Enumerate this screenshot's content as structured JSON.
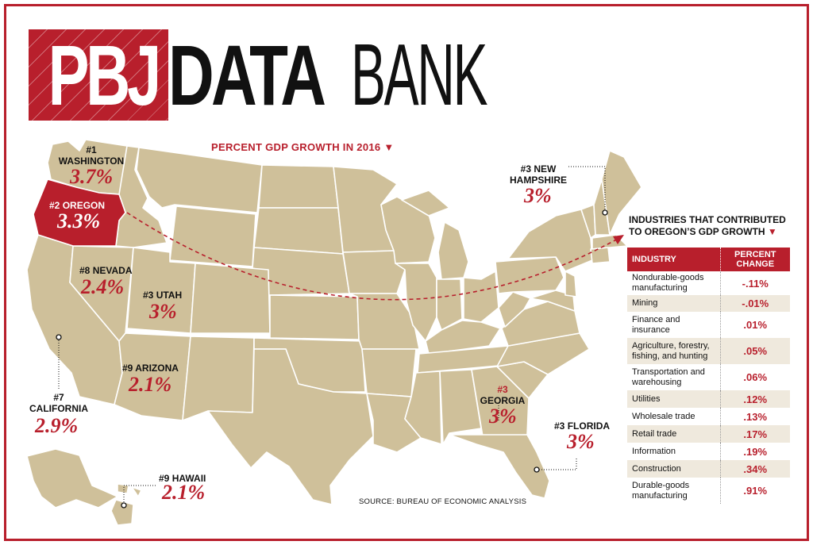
{
  "logo": {
    "left": "PBJ",
    "middle": "DATA",
    "right": "BANK"
  },
  "title": "PERCENT GDP GROWTH IN 2016 ▼",
  "colors": {
    "accent": "#b81f2c",
    "land": "#cfc09a",
    "border": "#ffffff",
    "oregon": "#b81f2c"
  },
  "states": [
    {
      "rank": "#1",
      "name": "WASHINGTON",
      "growth": "3.7%"
    },
    {
      "rank": "#2",
      "name": "OREGON",
      "growth": "3.3%"
    },
    {
      "rank": "#8",
      "name": "NEVADA",
      "growth": "2.4%"
    },
    {
      "rank": "#3",
      "name": "UTAH",
      "growth": "3%"
    },
    {
      "rank": "#9",
      "name": "ARIZONA",
      "growth": "2.1%"
    },
    {
      "rank": "#7",
      "name": "CALIFORNIA",
      "growth": "2.9%"
    },
    {
      "rank": "#9",
      "name": "HAWAII",
      "growth": "2.1%"
    },
    {
      "rank": "#3",
      "name": "NEW",
      "name2": "HAMPSHIRE",
      "growth": "3%"
    },
    {
      "rank": "#3",
      "name": "GEORGIA",
      "growth": "3%"
    },
    {
      "rank": "#3",
      "name": "FLORIDA",
      "growth": "3%"
    }
  ],
  "side_title": {
    "line1": "INDUSTRIES THAT CONTRIBUTED",
    "line2": "TO OREGON’S GDP GROWTH",
    "arrow": "▼"
  },
  "table": {
    "headers": [
      "INDUSTRY",
      "PERCENT",
      "CHANGE"
    ],
    "rows": [
      {
        "industry": "Nondurable-goods",
        "industry2": "manufacturing",
        "change": "-.11%"
      },
      {
        "industry": "Mining",
        "industry2": "",
        "change": "-.01%"
      },
      {
        "industry": "Finance and",
        "industry2": "insurance",
        "change": ".01%"
      },
      {
        "industry": "Agriculture, forestry,",
        "industry2": "fishing, and hunting",
        "change": ".05%"
      },
      {
        "industry": "Transportation and",
        "industry2": "warehousing",
        "change": ".06%"
      },
      {
        "industry": "Utilities",
        "industry2": "",
        "change": ".12%"
      },
      {
        "industry": "Wholesale trade",
        "industry2": "",
        "change": ".13%"
      },
      {
        "industry": "Retail trade",
        "industry2": "",
        "change": ".17%"
      },
      {
        "industry": "Information",
        "industry2": "",
        "change": ".19%"
      },
      {
        "industry": "Construction",
        "industry2": "",
        "change": ".34%"
      },
      {
        "industry": "Durable-goods",
        "industry2": "manufacturing",
        "change": ".91%"
      }
    ]
  },
  "source": "SOURCE: BUREAU OF ECONOMIC ANALYSIS"
}
